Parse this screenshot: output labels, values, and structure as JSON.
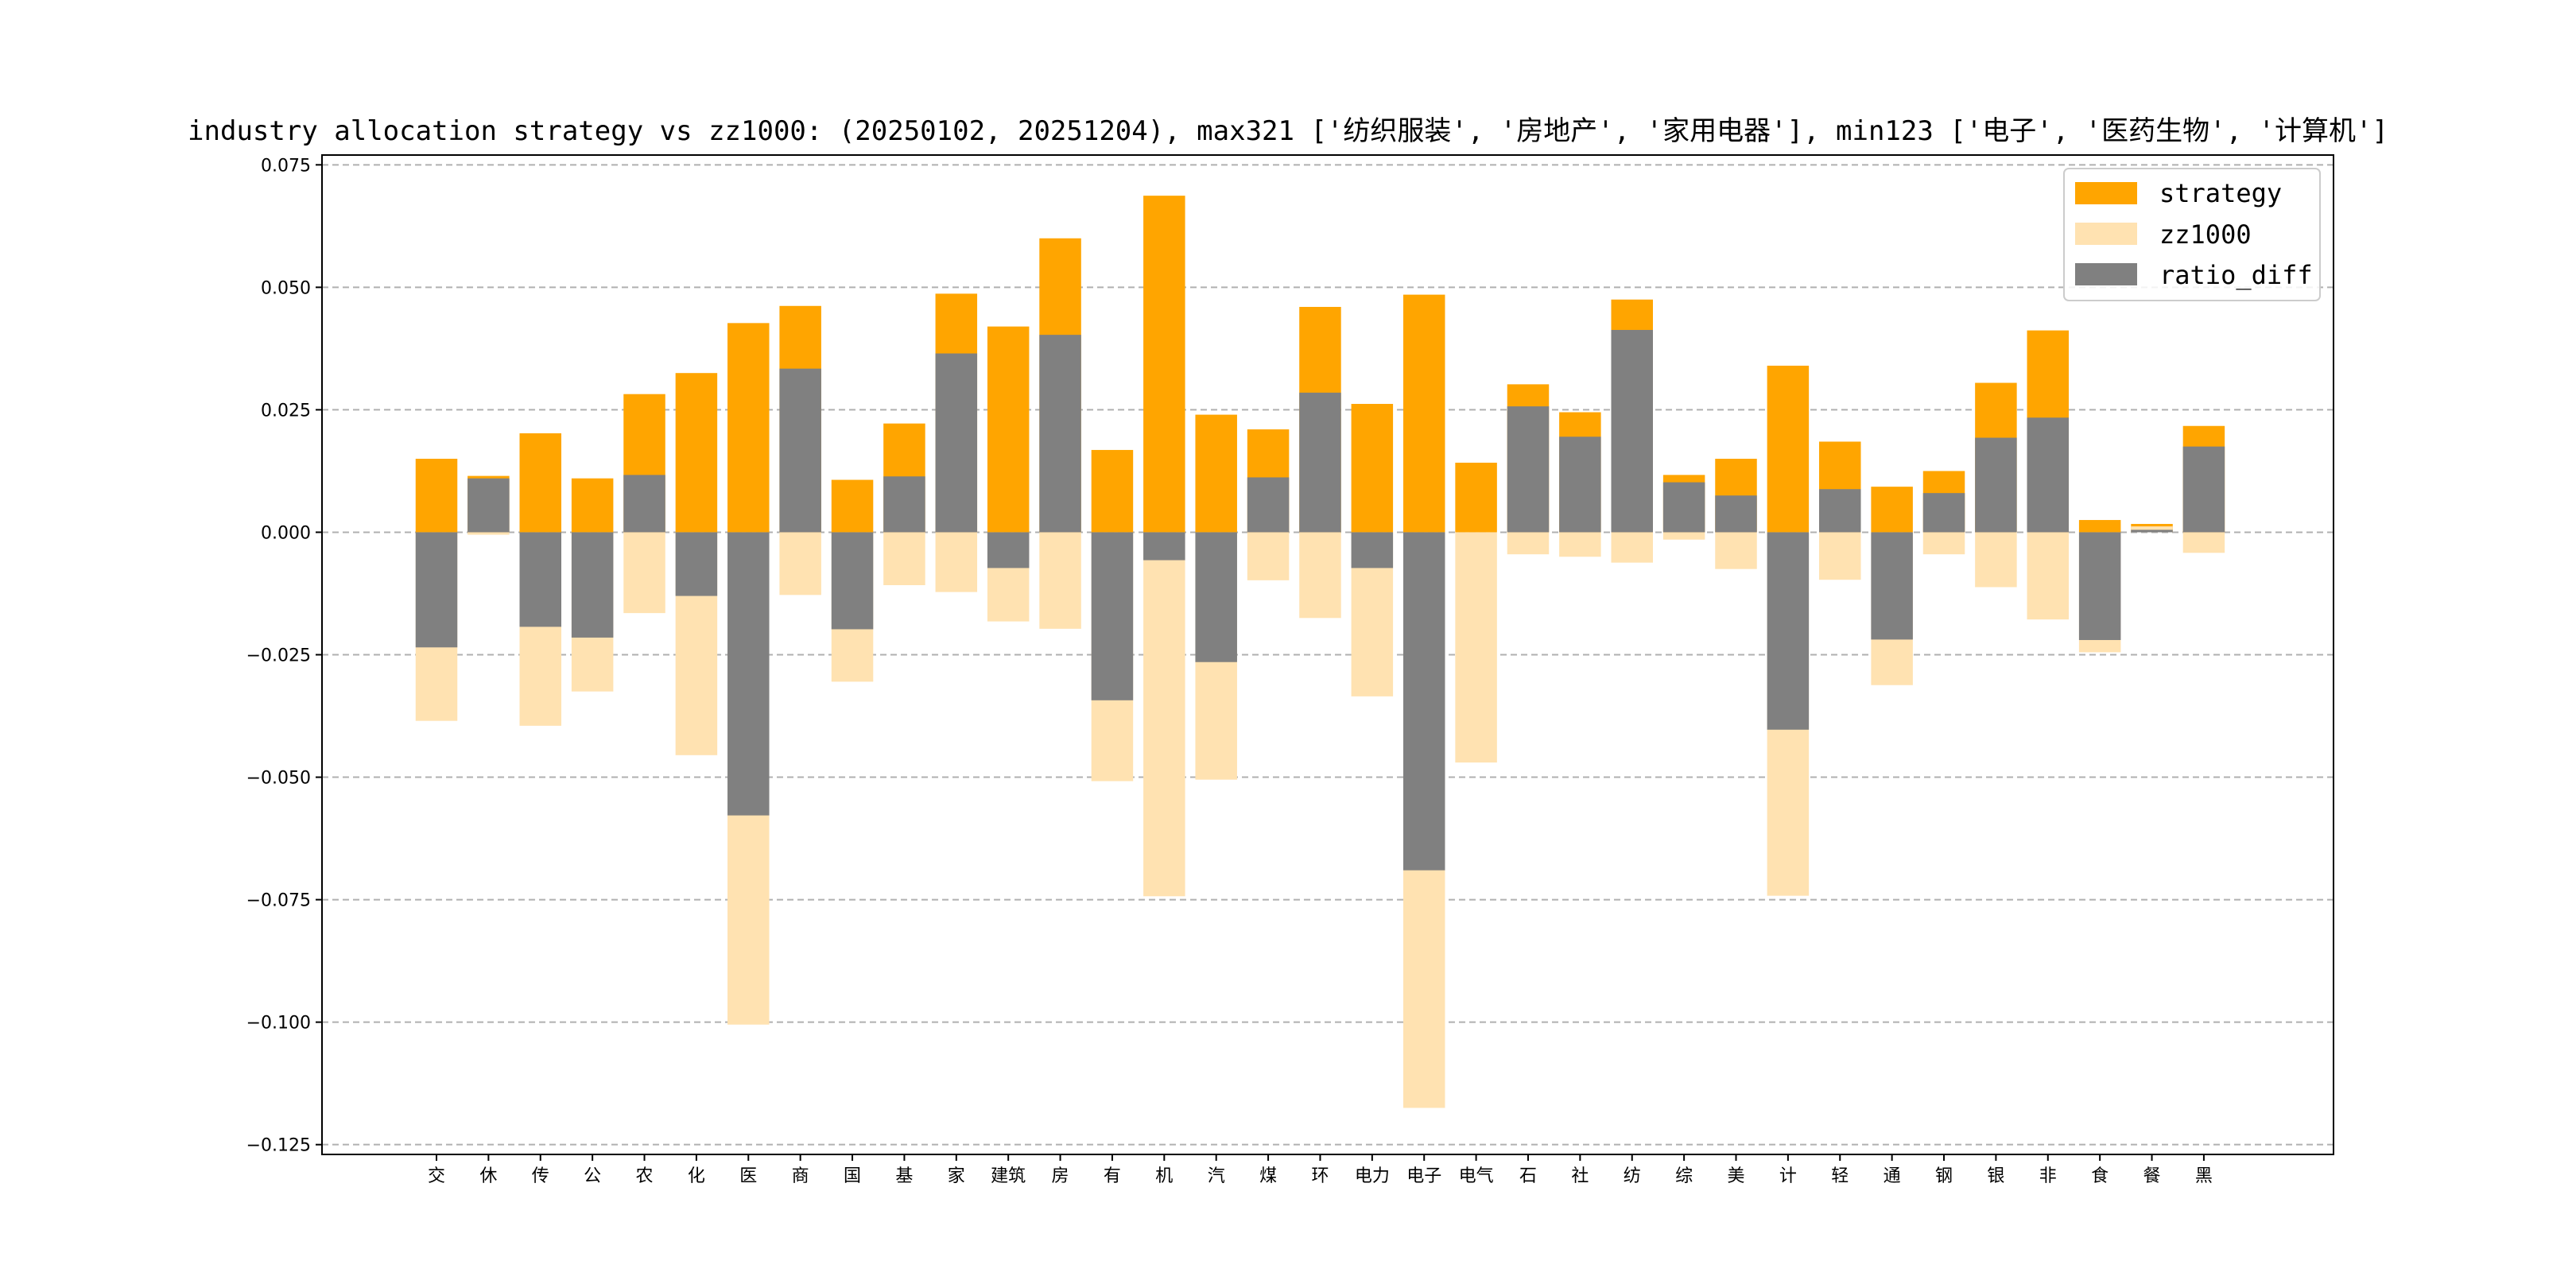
{
  "chart_data": {
    "type": "bar",
    "title": "industry allocation strategy vs zz1000: (20250102, 20251204), max321 ['纺织服装', '房地产', '家用电器'], min123 ['电子', '医药生物', '计算机']",
    "xlabel": "",
    "ylabel": "",
    "ylim": [
      -0.127,
      0.077
    ],
    "yticks": [
      0.075,
      0.05,
      0.025,
      0.0,
      -0.025,
      -0.05,
      -0.075,
      -0.1,
      -0.125
    ],
    "ytick_labels": [
      "0.075",
      "0.050",
      "0.025",
      "0.000",
      "−0.025",
      "−0.050",
      "−0.075",
      "−0.100",
      "−0.125"
    ],
    "grid": "horizontal dashed",
    "legend_position": "top-right",
    "categories": [
      "交",
      "休",
      "传",
      "公",
      "农",
      "化",
      "医",
      "商",
      "国",
      "基",
      "家",
      "建筑",
      "房",
      "有",
      "机",
      "汽",
      "煤",
      "环",
      "电力",
      "电子",
      "电气",
      "石",
      "社",
      "纺",
      "综",
      "美",
      "计",
      "轻",
      "通",
      "钢",
      "银",
      "非",
      "食",
      "餐",
      "黑"
    ],
    "series": [
      {
        "name": "strategy",
        "color": "#FFA500",
        "values": [
          0.015,
          0.0115,
          0.0202,
          0.011,
          0.0282,
          0.0325,
          0.0427,
          0.0462,
          0.0107,
          0.0222,
          0.0487,
          0.042,
          0.06,
          0.0168,
          0.0687,
          0.024,
          0.021,
          0.046,
          0.0262,
          0.0485,
          0.0142,
          0.0302,
          0.0245,
          0.0475,
          0.0117,
          0.015,
          0.034,
          0.0185,
          0.0093,
          0.0125,
          0.0305,
          0.0412,
          0.0025,
          0.0017,
          0.0217
        ]
      },
      {
        "name": "zz1000",
        "color": "#FFE2B1",
        "values": [
          -0.0385,
          -0.0005,
          -0.0395,
          -0.0325,
          -0.0165,
          -0.0455,
          -0.1005,
          -0.0128,
          -0.0305,
          -0.0108,
          -0.0122,
          -0.0182,
          -0.0197,
          -0.0508,
          -0.0743,
          -0.0505,
          -0.0098,
          -0.0175,
          -0.0335,
          -0.1175,
          -0.047,
          -0.0045,
          -0.005,
          -0.0062,
          -0.0015,
          -0.0075,
          -0.0742,
          -0.0097,
          -0.0312,
          -0.0045,
          -0.0112,
          -0.0178,
          -0.0245,
          0.0012,
          -0.0042
        ]
      },
      {
        "name": "ratio_diff",
        "color": "#808080",
        "values": [
          -0.0235,
          0.011,
          -0.0193,
          -0.0215,
          0.0117,
          -0.013,
          -0.0578,
          0.0334,
          -0.0198,
          0.0114,
          0.0365,
          -0.0073,
          0.0403,
          -0.0343,
          -0.0057,
          -0.0265,
          0.0112,
          0.0285,
          -0.0073,
          -0.069,
          0.0,
          0.0257,
          0.0195,
          0.0413,
          0.0102,
          0.0075,
          -0.0403,
          0.0088,
          -0.0219,
          0.008,
          0.0193,
          0.0234,
          -0.022,
          0.0005,
          0.0175
        ]
      }
    ]
  }
}
